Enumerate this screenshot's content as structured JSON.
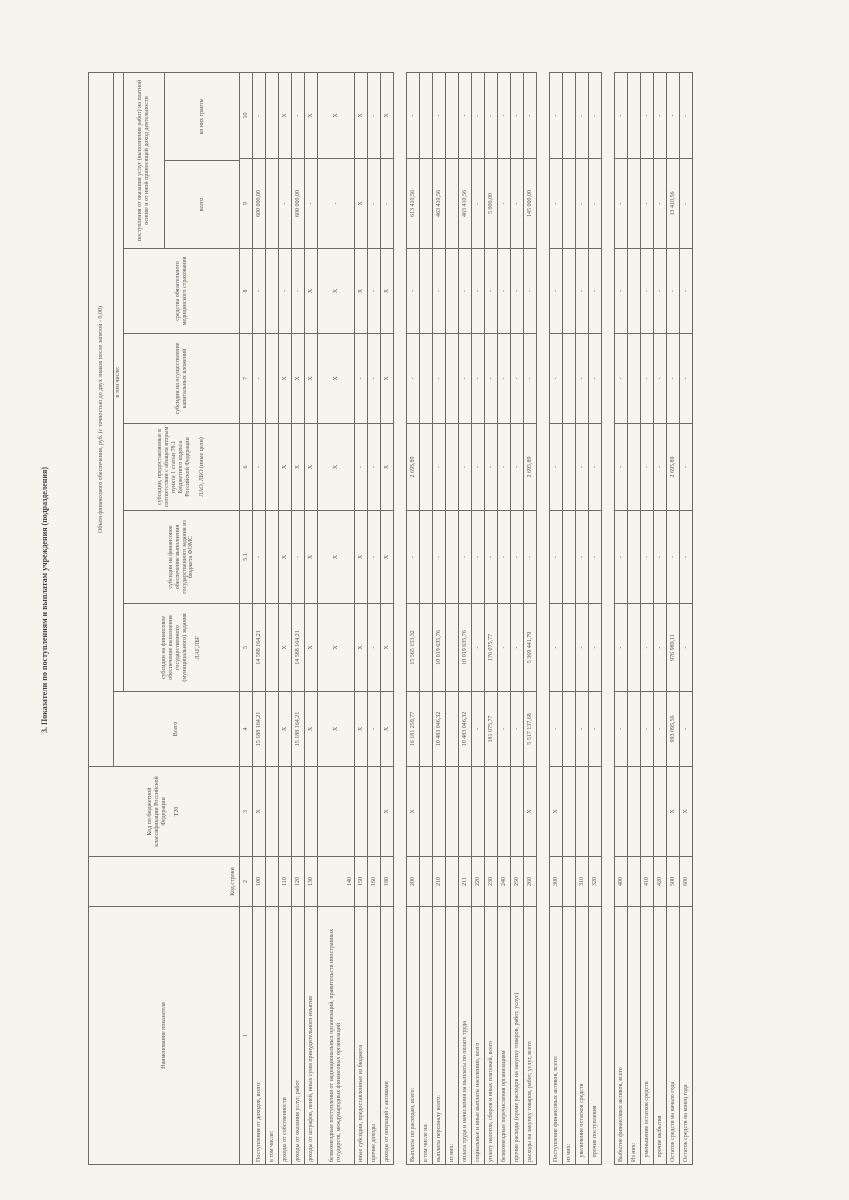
{
  "title": "3. Показатели по поступлениям и выплатам учреждения (подразделения)",
  "header": {
    "name": "Наименование показателя",
    "row_code": "Код строки",
    "kbk": "Код по бюджетной классификации Российской Федерации",
    "kbk_sub": "Т20",
    "volume": "Объем финансового обеспечения, руб. (с точностью до двух знаков после запятой - 0,00)",
    "total": "Всего",
    "incl": "в том числе:",
    "c5": "субсидии на финансовое обеспечение выполнения государственного (муниципального) задания",
    "c5_sub": "ЛАГ,ЛБГ",
    "c51": "субсидии на финансовое обеспечение выполнения государственного задания из бюджета ФОМС",
    "c6": "субсидии, предоставляемые в соответствии с абзацем вторым пункта 1 статьи 78.1 Бюджетного кодекса Российской Федерации",
    "c6_sub": "ЛАО, ЛБО (иные цели)",
    "c7": "субсидии на осуществление капитальных вложений",
    "c8": "средства обязательного медицинского страхования",
    "c9group": "поступления от оказания услуг (выполнения работ) на платной основе и от иной приносящей доход деятельности",
    "c9": "всего",
    "c10": "из них гранты",
    "nums": [
      "1",
      "2",
      "3",
      "4",
      "5",
      "5.1",
      "6",
      "7",
      "8",
      "9",
      "10"
    ]
  },
  "rows": [
    {
      "label": "Поступления от доходов, всего:",
      "code": "100",
      "v": [
        "X",
        "15 188 164,21",
        "14 588 164,21",
        "-",
        "-",
        "-",
        "-",
        "600 000,00",
        "-"
      ]
    },
    {
      "label": "в том числе:",
      "code": "",
      "v": [
        "",
        "",
        "",
        "",
        "",
        "",
        "",
        "",
        ""
      ]
    },
    {
      "label": "доходы от собственности",
      "code": "110",
      "v": [
        "",
        "X",
        "X",
        "X",
        "X",
        "X",
        "-",
        "-",
        "X"
      ]
    },
    {
      "label": "доходы от оказания услуг, работ",
      "code": "120",
      "v": [
        "",
        "15 188 164,21",
        "14 588 164,21",
        "-",
        "X",
        "X",
        "-",
        "600 000,00",
        "-"
      ]
    },
    {
      "label": "доходы от штрафов, пеней, иных сумм принудительного изъятия",
      "code": "130",
      "v": [
        "",
        "X",
        "X",
        "X",
        "X",
        "X",
        "X",
        "-",
        "X"
      ]
    },
    {
      "label": "безвозмездные поступления от наднациональных организаций, правительств иностранных государств, международных финансовых организаций",
      "code": "140",
      "tall": true,
      "v": [
        "",
        "X",
        "X",
        "X",
        "X",
        "X",
        "X",
        "-",
        "X"
      ]
    },
    {
      "label": "иные субсидии, предоставленные из бюджета",
      "code": "150",
      "v": [
        "",
        "X",
        "X",
        "X",
        "-",
        "-",
        "X",
        "X",
        "X"
      ]
    },
    {
      "label": "прочие доходы",
      "code": "160",
      "v": [
        "",
        "-",
        "-",
        "-",
        "-",
        "-",
        "-",
        "-",
        "-"
      ]
    },
    {
      "label": "доходы от операций с активами",
      "code": "180",
      "v": [
        "X",
        "X",
        "X",
        "X",
        "X",
        "X",
        "X",
        "-",
        "X"
      ]
    },
    {
      "gap": true
    },
    {
      "label": "Выплаты по расходам, всего:",
      "code": "200",
      "v": [
        "X",
        "16 181 259,77",
        "15 565 153,32",
        "-",
        "2 695,89",
        "-",
        "-",
        "613 410,56",
        "-"
      ]
    },
    {
      "label": "в том числе на:",
      "code": "",
      "v": [
        "",
        "",
        "",
        "",
        "",
        "",
        "",
        "",
        ""
      ]
    },
    {
      "label": "выплаты персоналу всего:",
      "code": "210",
      "v": [
        "",
        "10 483 046,32",
        "10 019 635,76",
        "-",
        "-",
        "-",
        "-",
        "463 410,56",
        "-"
      ]
    },
    {
      "label": "из них:",
      "code": "",
      "v": [
        "",
        "",
        "",
        "",
        "",
        "",
        "",
        "",
        ""
      ]
    },
    {
      "label": "оплата труда и начисления на выплаты по оплате труда",
      "code": "211",
      "v": [
        "",
        "10 483 046,32",
        "10 019 635,76",
        "-",
        "-",
        "-",
        "-",
        "463 410,56",
        "-"
      ]
    },
    {
      "label": "социальные и иные выплаты населению, всего",
      "code": "220",
      "v": [
        "",
        "-",
        "-",
        "-",
        "-",
        "-",
        "-",
        "-",
        "-"
      ]
    },
    {
      "label": "уплату налогов, сборов и иных платежей, всего",
      "code": "230",
      "v": [
        "",
        "181 075,77",
        "176 075,77",
        "-",
        "-",
        "-",
        "-",
        "5 000,00",
        "-"
      ]
    },
    {
      "label": "безвозмездные перечисления организациям",
      "code": "240",
      "v": [
        "",
        "-",
        "-",
        "-",
        "-",
        "-",
        "-",
        "-",
        "-"
      ]
    },
    {
      "label": "прочие расходы (кроме расходов на закупку товаров, работ, услуг)",
      "code": "250",
      "v": [
        "",
        "-",
        "-",
        "-",
        "-",
        "-",
        "-",
        "-",
        "-"
      ]
    },
    {
      "label": "расходы на закупку товаров, работ, услуг, всего",
      "code": "260",
      "v": [
        "X",
        "5 517 137,68",
        "5 369 441,79",
        "-",
        "2 695,89",
        "-",
        "-",
        "145 000,00",
        "-"
      ]
    },
    {
      "gap": true
    },
    {
      "label": "Поступление финансовых активов, всего:",
      "code": "300",
      "v": [
        "X",
        "-",
        "-",
        "-",
        "-",
        "-",
        "-",
        "-",
        "-"
      ]
    },
    {
      "label": "из них:",
      "code": "",
      "v": [
        "",
        "",
        "",
        "",
        "",
        "",
        "",
        "",
        ""
      ]
    },
    {
      "label": "   увеличение остатков средств",
      "code": "310",
      "v": [
        "",
        "-",
        "-",
        "-",
        "-",
        "-",
        "-",
        "-",
        "-"
      ]
    },
    {
      "label": "   прочие поступления",
      "code": "320",
      "v": [
        "",
        "-",
        "-",
        "-",
        "-",
        "-",
        "-",
        "-",
        "-"
      ]
    },
    {
      "gap": true
    },
    {
      "label": "Выбытие финансовых активов, всего",
      "code": "400",
      "v": [
        "",
        "-",
        "-",
        "-",
        "-",
        "-",
        "-",
        "-",
        "-"
      ]
    },
    {
      "label": "Из них:",
      "code": "",
      "v": [
        "",
        "",
        "",
        "",
        "",
        "",
        "",
        "",
        ""
      ]
    },
    {
      "label": "   уменьшение остатков средств",
      "code": "410",
      "v": [
        "",
        "-",
        "-",
        "-",
        "-",
        "-",
        "-",
        "-",
        "-"
      ]
    },
    {
      "label": "   прочие выбытия",
      "code": "420",
      "v": [
        "",
        "-",
        "-",
        "-",
        "-",
        "-",
        "-",
        "-",
        "-"
      ]
    },
    {
      "label": "Остаток средств на начало года",
      "code": "500",
      "v": [
        "X",
        "993 095,56",
        "976 989,11",
        "-",
        "2 695,89",
        "-",
        "-",
        "13 410,56",
        "-"
      ]
    },
    {
      "label": "Остаток средств на конец года",
      "code": "600",
      "v": [
        "X",
        "-",
        "-",
        "-",
        "-",
        "-",
        "-",
        "-",
        "-"
      ]
    }
  ]
}
